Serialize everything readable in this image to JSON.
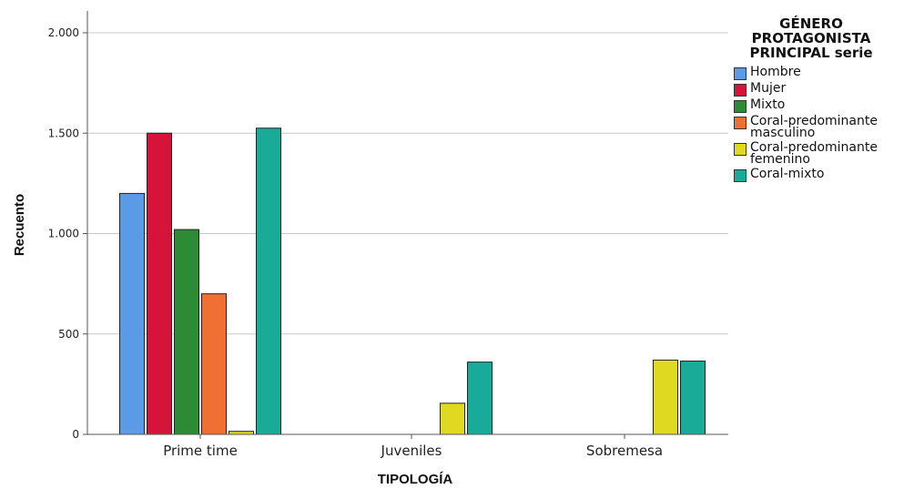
{
  "chart_data": {
    "type": "bar",
    "title": "",
    "xlabel": "TIPOLOGÍA",
    "ylabel": "Recuento",
    "ylim": [
      0,
      2000
    ],
    "yticks": [
      0,
      500,
      1000,
      1500,
      2000
    ],
    "ytick_labels": [
      "0",
      "500",
      "1.000",
      "1.500",
      "2.000"
    ],
    "grid": "horizontal",
    "legend_position": "right",
    "legend_title": "GÉNERO PROTAGONISTA PRINCIPAL serie",
    "categories": [
      "Prime time",
      "Juveniles",
      "Sobremesa"
    ],
    "series": [
      {
        "name": "Hombre",
        "color": "#5b9be6",
        "values": [
          1200,
          0,
          0
        ]
      },
      {
        "name": "Mujer",
        "color": "#d6143a",
        "values": [
          1500,
          0,
          0
        ]
      },
      {
        "name": "Mixto",
        "color": "#2e8b35",
        "values": [
          1020,
          0,
          0
        ]
      },
      {
        "name": "Coral-predominante masculino",
        "color": "#f07033",
        "values": [
          700,
          0,
          0
        ]
      },
      {
        "name": "Coral-predominante femenino",
        "color": "#e0d921",
        "values": [
          15,
          155,
          370
        ]
      },
      {
        "name": "Coral-mixto",
        "color": "#1aab98",
        "values": [
          1525,
          360,
          365
        ]
      }
    ]
  }
}
